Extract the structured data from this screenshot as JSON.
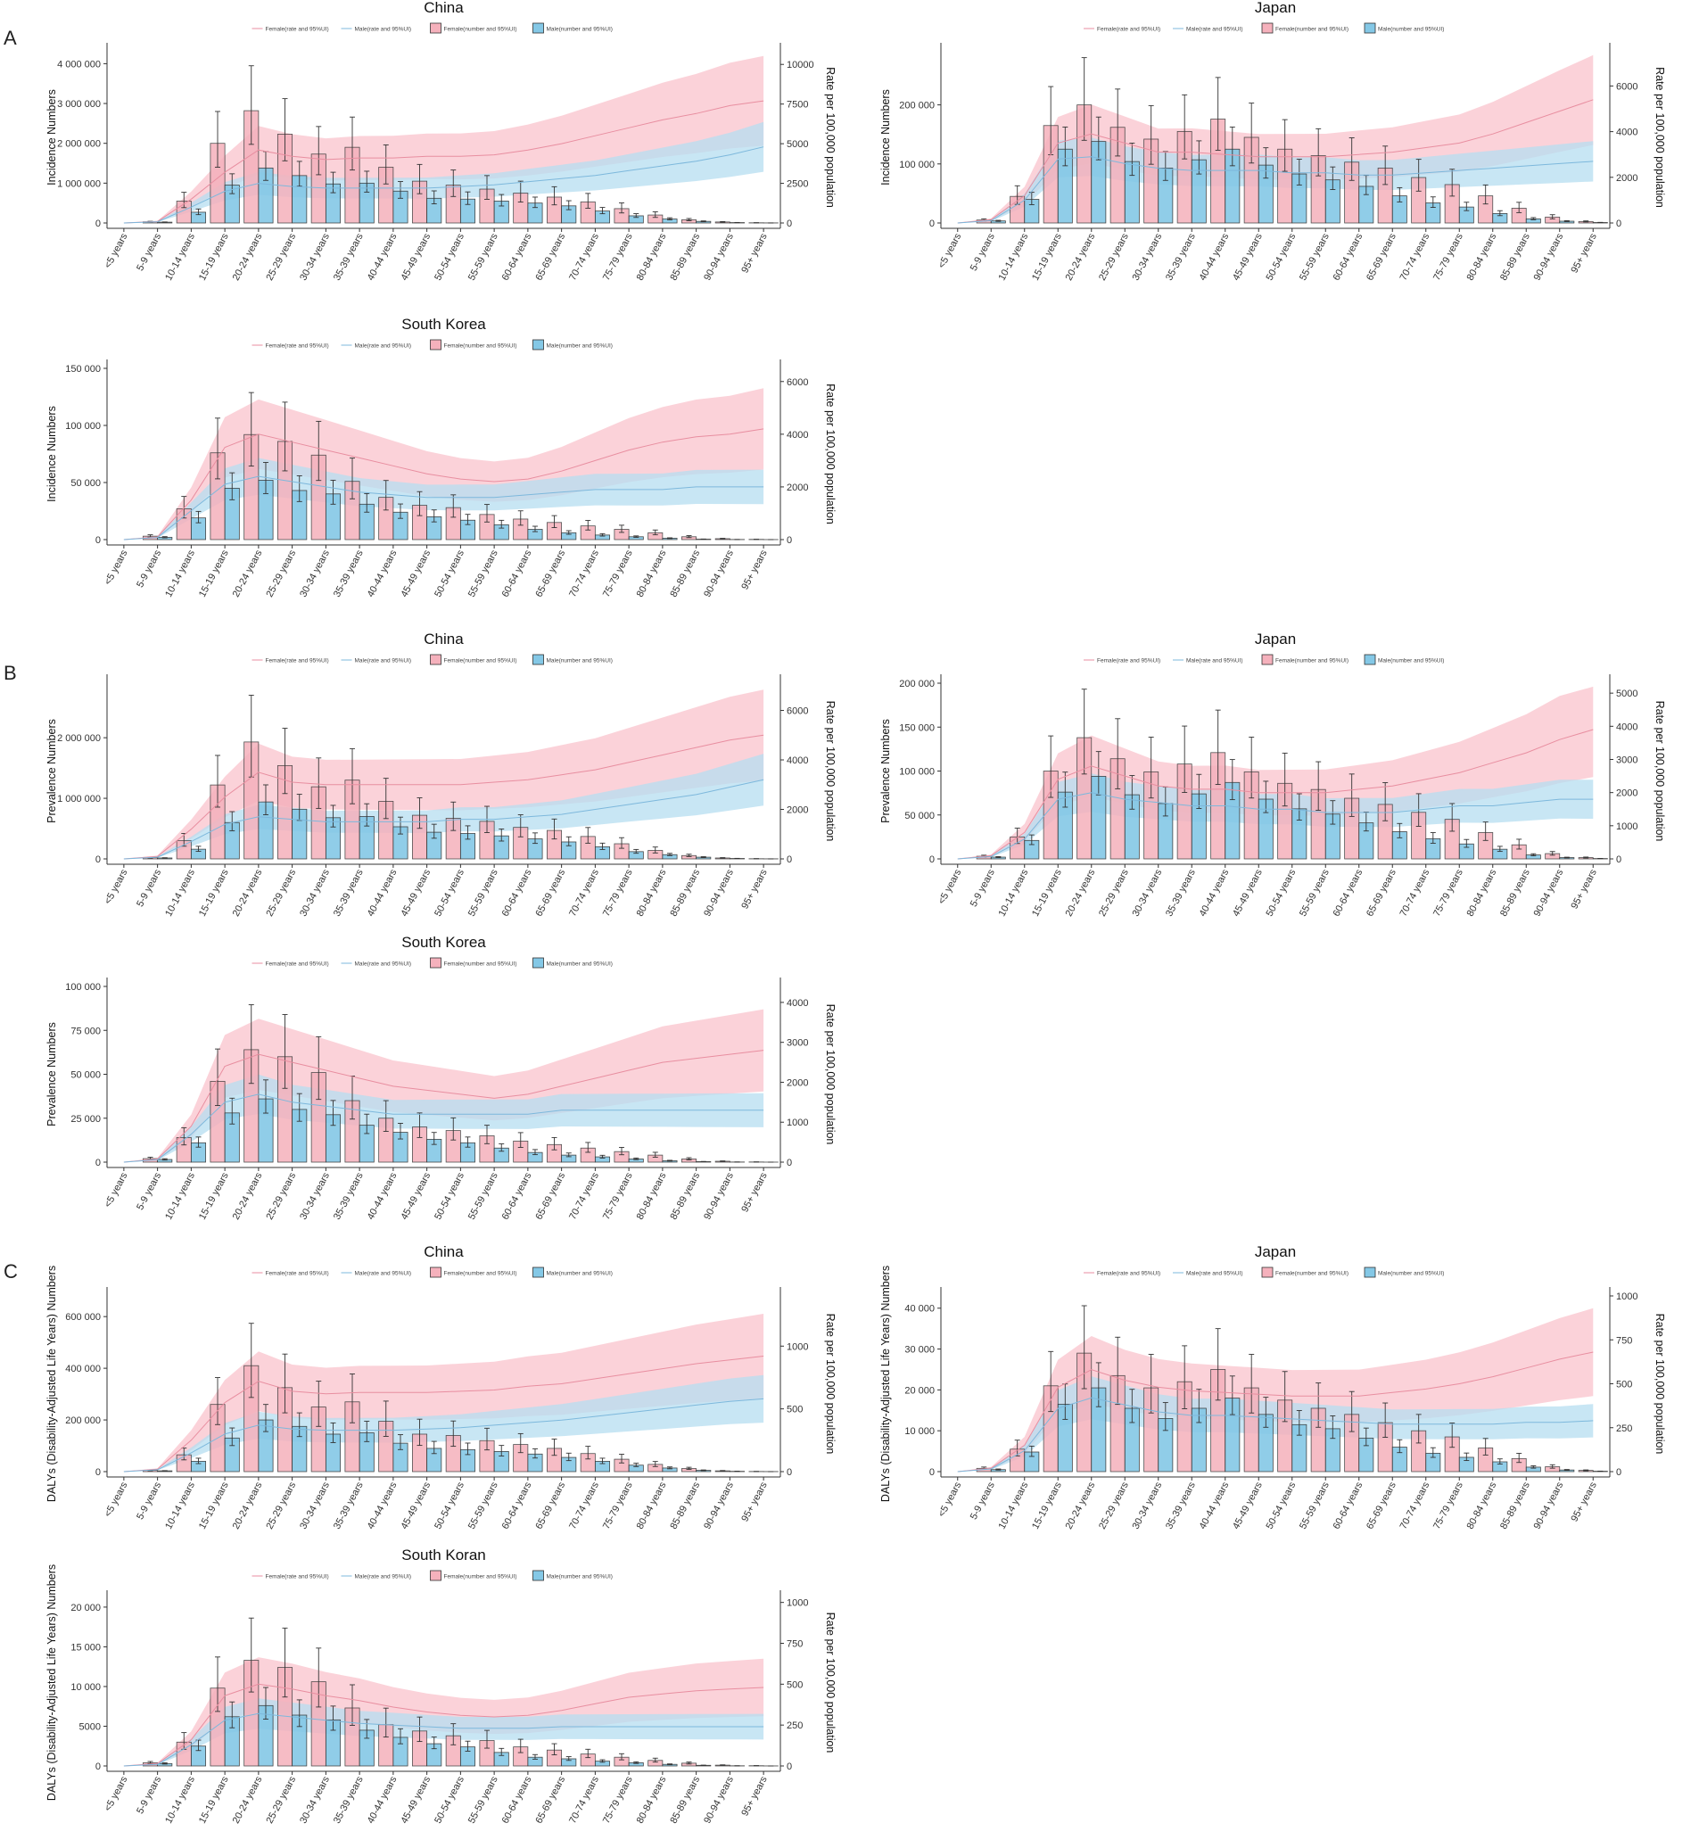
{
  "panel_labels": [
    "A",
    "B",
    "C"
  ],
  "age_groups": [
    "<5 years",
    "5-9 years",
    "10-14 years",
    "15-19 years",
    "20-24 years",
    "25-29 years",
    "30-34 years",
    "35-39 years",
    "40-44 years",
    "45-49 years",
    "50-54 years",
    "55-59 years",
    "60-64 years",
    "65-69 years",
    "70-74 years",
    "75-79 years",
    "80-84 years",
    "85-89 years",
    "90-94 years",
    "95+ years"
  ],
  "right_axis_label": "Rate per 100,000 population",
  "legend": {
    "female_rate": "Female(rate and 95%UI)",
    "male_rate": "Male(rate and 95%UI)",
    "female_number": "Female(number and 95%UI)",
    "male_number": "Male(number and 95%UI)"
  },
  "colors": {
    "female_bar": "#f5b1bc",
    "male_bar": "#84c8e6",
    "female_band": "#f9c3cc",
    "male_band": "#b6def0",
    "female_line": "#e88ea0",
    "male_line": "#7db8dc",
    "bar_stroke": "#333333"
  },
  "chart_data": [
    {
      "type": "bar+line",
      "title": "China",
      "ylabel": "Incidence Numbers",
      "ylim": [
        0,
        4300000
      ],
      "yticks": [
        0,
        1000000,
        2000000,
        3000000,
        4000000
      ],
      "ytick_labels": [
        "0",
        "1 000 000",
        "2 000 000",
        "3 000 000",
        "4 000 000"
      ],
      "rlim": [
        0,
        10800
      ],
      "rticks": [
        0,
        2500,
        5000,
        7500,
        10000
      ],
      "rtick_labels": [
        "0",
        "2500",
        "5000",
        "7500",
        "10000"
      ],
      "female": [
        0,
        30000,
        550000,
        2000000,
        2820000,
        2230000,
        1730000,
        1900000,
        1400000,
        1050000,
        950000,
        850000,
        750000,
        650000,
        530000,
        360000,
        200000,
        80000,
        25000,
        5000
      ],
      "male": [
        0,
        20000,
        270000,
        950000,
        1380000,
        1190000,
        980000,
        1000000,
        800000,
        620000,
        600000,
        550000,
        500000,
        430000,
        300000,
        180000,
        100000,
        40000,
        10000,
        2000
      ],
      "female_rate": [
        0,
        100,
        1500,
        3200,
        4600,
        4200,
        4000,
        4100,
        4100,
        4200,
        4200,
        4300,
        4600,
        5000,
        5500,
        6000,
        6500,
        6900,
        7400,
        7700
      ],
      "male_rate": [
        0,
        80,
        1000,
        2000,
        2500,
        2300,
        2200,
        2200,
        2200,
        2200,
        2300,
        2400,
        2600,
        2800,
        3000,
        3300,
        3600,
        3900,
        4300,
        4800
      ]
    },
    {
      "type": "bar+line",
      "title": "Japan",
      "ylabel": "Incidence Numbers",
      "ylim": [
        0,
        290000
      ],
      "yticks": [
        0,
        100000,
        200000
      ],
      "ytick_labels": [
        "0",
        "100 000",
        "200 000"
      ],
      "rlim": [
        0,
        7500
      ],
      "rticks": [
        0,
        2000,
        4000,
        6000
      ],
      "rtick_labels": [
        "0",
        "2000",
        "4000",
        "6000"
      ],
      "female": [
        0,
        5000,
        45000,
        165000,
        200000,
        162000,
        142000,
        155000,
        176000,
        145000,
        125000,
        114000,
        103000,
        93000,
        77000,
        65000,
        46000,
        25000,
        10000,
        2500
      ],
      "male": [
        0,
        3500,
        40000,
        125000,
        138000,
        104000,
        93000,
        107000,
        125000,
        98000,
        83000,
        73000,
        62000,
        46000,
        34000,
        27000,
        16000,
        7000,
        3000,
        800
      ],
      "female_rate": [
        0,
        150,
        1200,
        3500,
        3900,
        3500,
        3100,
        3100,
        3000,
        2900,
        2900,
        2900,
        3000,
        3100,
        3300,
        3500,
        3900,
        4400,
        4900,
        5400
      ],
      "male_rate": [
        0,
        100,
        1000,
        2800,
        2900,
        2600,
        2400,
        2300,
        2300,
        2300,
        2200,
        2200,
        2100,
        2100,
        2200,
        2300,
        2400,
        2500,
        2600,
        2700
      ]
    },
    {
      "type": "bar+line",
      "title": "South Korea",
      "ylabel": "Incidence Numbers",
      "ylim": [
        0,
        150000
      ],
      "yticks": [
        0,
        50000,
        100000,
        150000
      ],
      "ytick_labels": [
        "0",
        "50 000",
        "100 000",
        "150 000"
      ],
      "rlim": [
        0,
        6500
      ],
      "rticks": [
        0,
        2000,
        4000,
        6000
      ],
      "rtick_labels": [
        "0",
        "2000",
        "4000",
        "6000"
      ],
      "female": [
        0,
        3000,
        27000,
        76000,
        92000,
        86000,
        74000,
        51000,
        37000,
        30000,
        28000,
        22000,
        18000,
        15000,
        12000,
        9000,
        6000,
        2500,
        800,
        200
      ],
      "male": [
        0,
        2000,
        19000,
        45000,
        52000,
        43000,
        40000,
        31000,
        24000,
        20000,
        17000,
        13000,
        9000,
        6000,
        4000,
        2500,
        1200,
        400,
        100,
        20
      ],
      "female_rate": [
        0,
        100,
        1500,
        3500,
        4000,
        3700,
        3400,
        3100,
        2800,
        2500,
        2300,
        2200,
        2300,
        2600,
        3000,
        3400,
        3700,
        3900,
        4000,
        4200
      ],
      "male_rate": [
        0,
        80,
        1100,
        2100,
        2400,
        2200,
        2000,
        1800,
        1700,
        1600,
        1600,
        1600,
        1700,
        1800,
        1900,
        1900,
        1900,
        2000,
        2000,
        2000
      ]
    },
    {
      "type": "bar+line",
      "title": "China",
      "ylabel": "Prevalence Numbers",
      "ylim": [
        0,
        2900000
      ],
      "yticks": [
        0,
        1000000,
        2000000
      ],
      "ytick_labels": [
        "0",
        "1 000 000",
        "2 000 000"
      ],
      "rlim": [
        0,
        7100
      ],
      "rticks": [
        0,
        2000,
        4000,
        6000
      ],
      "rtick_labels": [
        "0",
        "2000",
        "4000",
        "6000"
      ],
      "female": [
        0,
        20000,
        300000,
        1220000,
        1930000,
        1540000,
        1190000,
        1300000,
        950000,
        720000,
        670000,
        620000,
        520000,
        470000,
        370000,
        250000,
        140000,
        55000,
        15000,
        3000
      ],
      "male": [
        0,
        15000,
        160000,
        600000,
        940000,
        820000,
        680000,
        700000,
        530000,
        440000,
        420000,
        380000,
        330000,
        280000,
        200000,
        120000,
        70000,
        28000,
        7000,
        1200
      ],
      "female_rate": [
        0,
        100,
        1200,
        2500,
        3500,
        3100,
        3000,
        3000,
        3000,
        3000,
        3000,
        3100,
        3200,
        3400,
        3600,
        3900,
        4200,
        4500,
        4800,
        5000
      ],
      "male_rate": [
        0,
        70,
        700,
        1400,
        1700,
        1600,
        1500,
        1500,
        1500,
        1500,
        1600,
        1600,
        1700,
        1800,
        2000,
        2200,
        2400,
        2600,
        2900,
        3200
      ]
    },
    {
      "type": "bar+line",
      "title": "Japan",
      "ylabel": "Prevalence Numbers",
      "ylim": [
        0,
        200000
      ],
      "yticks": [
        0,
        50000,
        100000,
        150000,
        200000
      ],
      "ytick_labels": [
        "0",
        "50 000",
        "100 000",
        "150 000",
        "200 000"
      ],
      "rlim": [
        0,
        5300
      ],
      "rticks": [
        0,
        1000,
        2000,
        3000,
        4000,
        5000
      ],
      "rtick_labels": [
        "0",
        "1000",
        "2000",
        "3000",
        "4000",
        "5000"
      ],
      "female": [
        0,
        3000,
        25000,
        100000,
        138000,
        114000,
        99000,
        108000,
        121000,
        99000,
        86000,
        79000,
        69000,
        62000,
        53000,
        45000,
        30000,
        16000,
        6000,
        1500
      ],
      "male": [
        0,
        2000,
        21000,
        76000,
        94000,
        73000,
        63000,
        74000,
        87000,
        68000,
        57000,
        51000,
        41000,
        31000,
        23000,
        17000,
        11000,
        4500,
        1500,
        400
      ],
      "female_rate": [
        0,
        100,
        800,
        2400,
        2800,
        2500,
        2200,
        2100,
        2100,
        2000,
        2000,
        2000,
        2100,
        2200,
        2400,
        2600,
        2900,
        3200,
        3600,
        3900
      ],
      "male_rate": [
        0,
        70,
        600,
        1800,
        2000,
        1800,
        1700,
        1600,
        1600,
        1500,
        1500,
        1400,
        1400,
        1400,
        1500,
        1600,
        1600,
        1700,
        1800,
        1800
      ]
    },
    {
      "type": "bar+line",
      "title": "South Korea",
      "ylabel": "Prevalence Numbers",
      "ylim": [
        0,
        100000
      ],
      "yticks": [
        0,
        25000,
        50000,
        75000,
        100000
      ],
      "ytick_labels": [
        "0",
        "25 000",
        "50 000",
        "75 000",
        "100 000"
      ],
      "rlim": [
        0,
        4400
      ],
      "rticks": [
        0,
        1000,
        2000,
        3000,
        4000
      ],
      "rtick_labels": [
        "0",
        "1000",
        "2000",
        "3000",
        "4000"
      ],
      "female": [
        0,
        2000,
        14000,
        46000,
        64000,
        60000,
        51000,
        35000,
        25000,
        20000,
        18000,
        15000,
        12000,
        10000,
        8000,
        6000,
        4000,
        1800,
        500,
        100
      ],
      "male": [
        0,
        1500,
        11000,
        28000,
        36000,
        30000,
        27000,
        21000,
        17000,
        13000,
        11000,
        8000,
        5500,
        4000,
        3000,
        1800,
        800,
        300,
        80,
        15
      ],
      "female_rate": [
        0,
        80,
        900,
        2400,
        2700,
        2500,
        2300,
        2100,
        1900,
        1800,
        1700,
        1600,
        1700,
        1900,
        2100,
        2300,
        2500,
        2600,
        2700,
        2800
      ],
      "male_rate": [
        0,
        60,
        700,
        1500,
        1700,
        1500,
        1400,
        1300,
        1200,
        1200,
        1200,
        1200,
        1200,
        1300,
        1300,
        1300,
        1300,
        1300,
        1300,
        1300
      ]
    },
    {
      "type": "bar+line",
      "title": "China",
      "ylabel": "DALYs (Disability-Adjusted Life Years) Numbers",
      "ylim": [
        0,
        680000
      ],
      "yticks": [
        0,
        200000,
        400000,
        600000
      ],
      "ytick_labels": [
        "0",
        "200 000",
        "400 000",
        "600 000"
      ],
      "rlim": [
        0,
        1400
      ],
      "rticks": [
        0,
        500,
        1000
      ],
      "rtick_labels": [
        "0",
        "500",
        "1000"
      ],
      "female": [
        0,
        5000,
        65000,
        260000,
        410000,
        325000,
        250000,
        270000,
        195000,
        145000,
        140000,
        120000,
        105000,
        90000,
        70000,
        48000,
        28000,
        12000,
        3000,
        600
      ],
      "male": [
        0,
        3000,
        40000,
        130000,
        200000,
        175000,
        145000,
        150000,
        110000,
        90000,
        85000,
        78000,
        68000,
        55000,
        40000,
        25000,
        14000,
        5000,
        1200,
        200
      ],
      "female_rate": [
        0,
        20,
        250,
        550,
        720,
        640,
        620,
        630,
        630,
        630,
        640,
        650,
        680,
        700,
        740,
        780,
        820,
        860,
        890,
        920
      ],
      "male_rate": [
        0,
        15,
        150,
        300,
        370,
        340,
        330,
        330,
        330,
        340,
        350,
        370,
        390,
        410,
        440,
        470,
        500,
        530,
        560,
        580
      ]
    },
    {
      "type": "bar+line",
      "title": "Japan",
      "ylabel": "DALYs (Disability-Adjusted Life Years) Numbers",
      "ylim": [
        0,
        43000
      ],
      "yticks": [
        0,
        10000,
        20000,
        30000,
        40000
      ],
      "ytick_labels": [
        "0",
        "10 000",
        "20 000",
        "30 000",
        "40 000"
      ],
      "rlim": [
        0,
        1000
      ],
      "rticks": [
        0,
        250,
        500,
        750,
        1000
      ],
      "rtick_labels": [
        "0",
        "250",
        "500",
        "750",
        "1000"
      ],
      "female": [
        0,
        800,
        5500,
        21000,
        29000,
        23500,
        20500,
        22000,
        25000,
        20500,
        17500,
        15500,
        14000,
        12000,
        10000,
        8500,
        5800,
        3200,
        1200,
        300
      ],
      "male": [
        0,
        500,
        4800,
        16500,
        20500,
        15500,
        13000,
        15500,
        18000,
        14000,
        11500,
        10500,
        8200,
        6000,
        4500,
        3500,
        2400,
        1100,
        400,
        100
      ],
      "female_rate": [
        0,
        20,
        150,
        480,
        580,
        520,
        480,
        460,
        450,
        440,
        430,
        430,
        430,
        450,
        470,
        500,
        540,
        590,
        640,
        680
      ],
      "male_rate": [
        0,
        15,
        120,
        360,
        420,
        380,
        340,
        320,
        320,
        310,
        300,
        290,
        280,
        270,
        270,
        270,
        270,
        280,
        280,
        290
      ]
    },
    {
      "type": "bar+line",
      "title": "South Koran",
      "ylabel": "DALYs (Disability-Adjusted Life Years) Numbers",
      "ylim": [
        0,
        21000
      ],
      "yticks": [
        0,
        5000,
        10000,
        15000,
        20000
      ],
      "ytick_labels": [
        "0",
        "5000",
        "10 000",
        "15 000",
        "20 000"
      ],
      "rlim": [
        0,
        1020
      ],
      "rticks": [
        0,
        250,
        500,
        750,
        1000
      ],
      "rtick_labels": [
        "0",
        "250",
        "500",
        "750",
        "1000"
      ],
      "female": [
        0,
        400,
        3000,
        9800,
        13300,
        12400,
        10600,
        7300,
        5200,
        4400,
        3800,
        3200,
        2400,
        2000,
        1500,
        1100,
        700,
        350,
        100,
        30
      ],
      "male": [
        0,
        300,
        2500,
        6200,
        7600,
        6400,
        5800,
        4500,
        3600,
        2800,
        2400,
        1700,
        1100,
        900,
        600,
        400,
        200,
        80,
        20,
        5
      ],
      "female_rate": [
        0,
        15,
        160,
        430,
        500,
        470,
        430,
        400,
        360,
        330,
        310,
        300,
        310,
        340,
        380,
        420,
        440,
        460,
        470,
        480
      ],
      "male_rate": [
        0,
        10,
        130,
        280,
        320,
        300,
        280,
        260,
        250,
        240,
        230,
        230,
        230,
        240,
        240,
        240,
        240,
        240,
        240,
        240
      ]
    }
  ]
}
